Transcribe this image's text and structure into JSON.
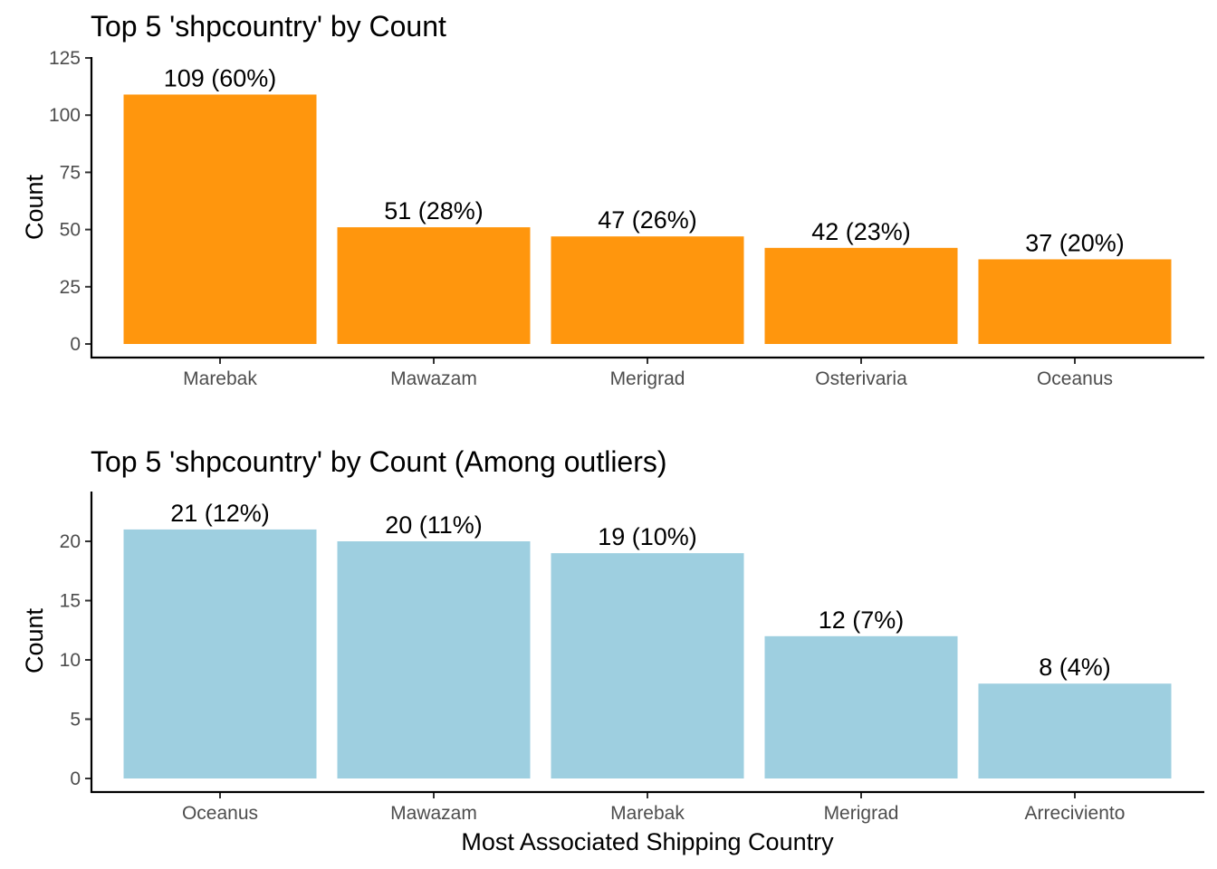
{
  "chart_data": [
    {
      "type": "bar",
      "title": "Top 5 'shpcountry' by Count",
      "xlabel": "",
      "ylabel": "Count",
      "categories": [
        "Marebak",
        "Mawazam",
        "Merigrad",
        "Osterivaria",
        "Oceanus"
      ],
      "values": [
        109,
        51,
        47,
        42,
        37
      ],
      "data_labels": [
        "109 (60%)",
        "51 (28%)",
        "47 (26%)",
        "42 (23%)",
        "37 (20%)"
      ],
      "yticks": [
        0,
        25,
        50,
        75,
        100,
        125
      ],
      "ylim": [
        0,
        125
      ],
      "bar_color": "#ff960d",
      "grid": false,
      "legend": "none"
    },
    {
      "type": "bar",
      "title": "Top 5 'shpcountry' by Count (Among outliers)",
      "xlabel": "Most Associated Shipping Country",
      "ylabel": "Count",
      "categories": [
        "Oceanus",
        "Mawazam",
        "Marebak",
        "Merigrad",
        "Arreciviento"
      ],
      "values": [
        21,
        20,
        19,
        12,
        8
      ],
      "data_labels": [
        "21 (12%)",
        "20 (11%)",
        "19 (10%)",
        "12 (7%)",
        "8 (4%)"
      ],
      "yticks": [
        0,
        5,
        10,
        15,
        20
      ],
      "ylim": [
        0,
        23
      ],
      "bar_color": "#9ecfe0",
      "grid": false,
      "legend": "none"
    }
  ]
}
